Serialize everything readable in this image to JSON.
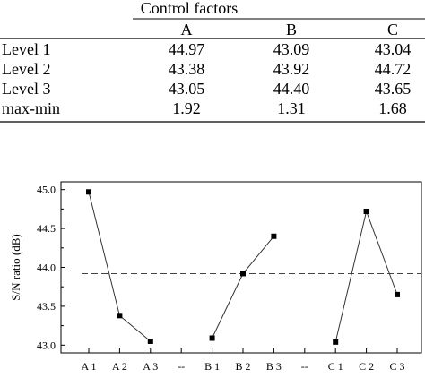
{
  "table": {
    "group_header": "Control factors",
    "columns": [
      "A",
      "B",
      "C"
    ],
    "rows": [
      {
        "label": "Level 1",
        "values": [
          "44.97",
          "43.09",
          "43.04"
        ]
      },
      {
        "label": "Level 2",
        "values": [
          "43.38",
          "43.92",
          "44.72"
        ]
      },
      {
        "label": "Level 3",
        "values": [
          "43.05",
          "44.40",
          "43.65"
        ]
      },
      {
        "label": "max-min",
        "values": [
          "1.92",
          "1.31",
          "1.68"
        ]
      }
    ]
  },
  "chart_data": {
    "type": "line",
    "ylabel": "S/N ratio (dB)",
    "xlabel": "",
    "categories": [
      "A 1",
      "A 2",
      "A 3",
      "--",
      "B 1",
      "B 2",
      "B 3",
      "--",
      "C 1",
      "C 2",
      "C 3"
    ],
    "ylim": [
      42.9,
      45.1
    ],
    "yticks": [
      "43.0",
      "43.5",
      "44.0",
      "44.5",
      "45.0"
    ],
    "grid": false,
    "mean_line": 43.92,
    "series": [
      {
        "values": [
          44.97,
          43.38,
          43.05,
          null,
          43.09,
          43.92,
          44.4,
          null,
          43.04,
          44.72,
          43.65
        ]
      }
    ],
    "colors": {
      "line": "#333333",
      "marker": "#000000",
      "mean_line": "#444444"
    }
  }
}
